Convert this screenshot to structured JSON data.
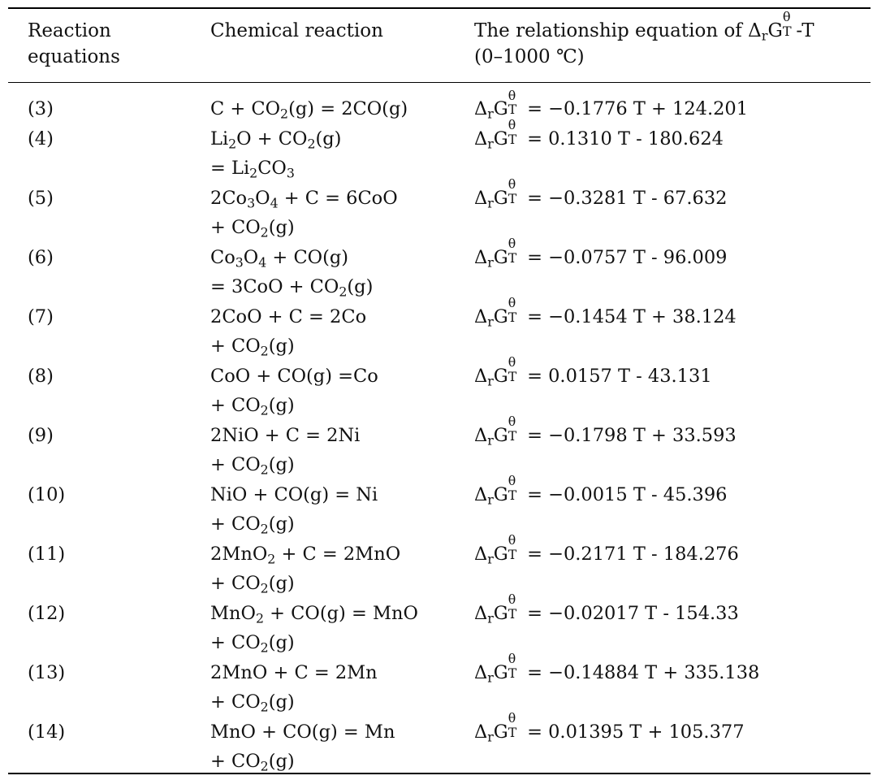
{
  "table": {
    "headers": {
      "col1": [
        "Reaction",
        "equations"
      ],
      "col2": [
        "Chemical reaction"
      ],
      "col3": [
        "The relationship equation of ΔrGTθ-T",
        "(0–1000 ℃)"
      ]
    },
    "rows": [
      {
        "no": "(3)",
        "reaction": [
          "C + CO2(g) = 2CO(g)"
        ],
        "equation": "ΔrGTθ = −0.1776 T + 124.201"
      },
      {
        "no": "(4)",
        "reaction": [
          "Li2O + CO2(g)",
          "= Li2CO3"
        ],
        "equation": "ΔrGTθ = 0.1310 T - 180.624"
      },
      {
        "no": "(5)",
        "reaction": [
          "2Co3O4 + C = 6CoO",
          "+ CO2(g)"
        ],
        "equation": "ΔrGTθ = −0.3281 T - 67.632"
      },
      {
        "no": "(6)",
        "reaction": [
          "Co3O4 + CO(g)",
          "= 3CoO + CO2(g)"
        ],
        "equation": "ΔrGTθ = −0.0757 T - 96.009"
      },
      {
        "no": "(7)",
        "reaction": [
          "2CoO + C = 2Co",
          "+ CO2(g)"
        ],
        "equation": "ΔrGTθ = −0.1454 T + 38.124"
      },
      {
        "no": "(8)",
        "reaction": [
          "CoO + CO(g) =Co",
          "+ CO2(g)"
        ],
        "equation": "ΔrGTθ = 0.0157 T - 43.131"
      },
      {
        "no": "(9)",
        "reaction": [
          "2NiO + C = 2Ni",
          "+ CO2(g)"
        ],
        "equation": "ΔrGTθ = −0.1798 T + 33.593"
      },
      {
        "no": "(10)",
        "reaction": [
          "NiO + CO(g) = Ni",
          "+ CO2(g)"
        ],
        "equation": "ΔrGTθ = −0.0015 T - 45.396"
      },
      {
        "no": "(11)",
        "reaction": [
          "2MnO2 + C = 2MnO",
          "+ CO2(g)"
        ],
        "equation": "ΔrGTθ = −0.2171 T - 184.276"
      },
      {
        "no": "(12)",
        "reaction": [
          "MnO2 + CO(g) = MnO",
          "+ CO2(g)"
        ],
        "equation": "ΔrGTθ = −0.02017 T - 154.33"
      },
      {
        "no": "(13)",
        "reaction": [
          "2MnO + C = 2Mn",
          "+ CO2(g)"
        ],
        "equation": "ΔrGTθ = −0.14884 T + 335.138"
      },
      {
        "no": "(14)",
        "reaction": [
          "MnO + CO(g) = Mn",
          "+ CO2(g)"
        ],
        "equation": "ΔrGTθ = 0.01395 T + 105.377"
      }
    ]
  }
}
